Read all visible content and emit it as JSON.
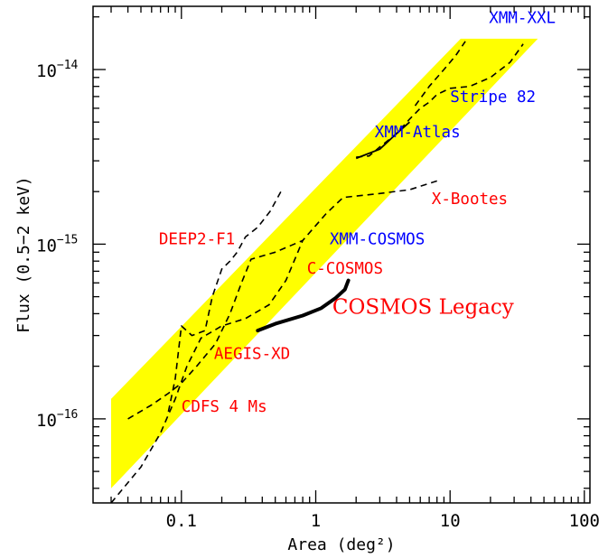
{
  "chart_data": {
    "type": "line",
    "title": "",
    "xlabel": "Area (deg²)",
    "ylabel": "Flux (0.5−2 keV)",
    "xscale": "log",
    "yscale": "log",
    "xlim": [
      0.022,
      110
    ],
    "ylim": [
      3.3e-17,
      2.3e-14
    ],
    "x_tick_labels": [
      "0.1",
      "1",
      "10",
      "100"
    ],
    "y_tick_labels": [
      {
        "mantissa": "10",
        "exponent": "−14"
      },
      {
        "mantissa": "10",
        "exponent": "−15"
      },
      {
        "mantissa": "10",
        "exponent": "−16"
      }
    ],
    "colors": {
      "band": "#ffff00",
      "red_label": "#ff0000",
      "blue_label": "#0000ff",
      "curve": "#000000"
    },
    "band": {
      "upper": [
        [
          0.03,
          1.3e-16
        ],
        [
          12,
          1.5e-14
        ]
      ],
      "lower": [
        [
          0.03,
          4e-17
        ],
        [
          45,
          1.5e-14
        ]
      ]
    },
    "series": [
      {
        "label_ref": "CDFS 4 Ms",
        "style": "dashed",
        "points": [
          [
            0.03,
            3.3e-17
          ],
          [
            0.05,
            5.3e-17
          ],
          [
            0.07,
            8.3e-17
          ],
          [
            0.09,
            1.3e-16
          ],
          [
            0.11,
            2e-16
          ],
          [
            0.14,
            2.9e-16
          ],
          [
            0.2,
            3.4e-16
          ],
          [
            0.3,
            3.75e-16
          ],
          [
            0.45,
            4.5e-16
          ],
          [
            0.6,
            6.2e-16
          ],
          [
            0.7,
            8.2e-16
          ],
          [
            0.8,
            1.05e-15
          ]
        ]
      },
      {
        "label_ref": "AEGIS-XD",
        "style": "dashed",
        "points": [
          [
            0.04,
            1e-16
          ],
          [
            0.06,
            1.2e-16
          ],
          [
            0.08,
            1.4e-16
          ],
          [
            0.1,
            1.6e-16
          ],
          [
            0.13,
            2e-16
          ],
          [
            0.18,
            2.7e-16
          ],
          [
            0.23,
            4e-16
          ],
          [
            0.28,
            6e-16
          ],
          [
            0.33,
            8.2e-16
          ],
          [
            0.5,
            9e-16
          ],
          [
            0.8,
            1.05e-15
          ],
          [
            1.2,
            1.5e-15
          ],
          [
            1.6,
            1.85e-15
          ],
          [
            3,
            1.95e-15
          ],
          [
            5,
            2.05e-15
          ],
          [
            8,
            2.3e-15
          ]
        ]
      },
      {
        "label_ref": "DEEP2-F1",
        "style": "dashed",
        "points": [
          [
            0.08,
            1.1e-16
          ],
          [
            0.09,
            1.7e-16
          ],
          [
            0.1,
            3.4e-16
          ],
          [
            0.12,
            3e-16
          ],
          [
            0.15,
            3.2e-16
          ],
          [
            0.17,
            5e-16
          ],
          [
            0.2,
            7.2e-16
          ],
          [
            0.23,
            8e-16
          ],
          [
            0.26,
            9e-16
          ],
          [
            0.3,
            1.1e-15
          ],
          [
            0.37,
            1.25e-15
          ],
          [
            0.46,
            1.55e-15
          ],
          [
            0.55,
            2e-15
          ]
        ]
      },
      {
        "label_ref": "XMM-XXL",
        "style": "dashed",
        "points": [
          [
            2,
            3.15e-15
          ],
          [
            2.5,
            3.2e-15
          ],
          [
            3,
            3.6e-15
          ],
          [
            4,
            4.3e-15
          ],
          [
            5,
            5.2e-15
          ],
          [
            6,
            6e-15
          ],
          [
            7,
            6.5e-15
          ],
          [
            8,
            7.2e-15
          ],
          [
            10,
            7.8e-15
          ],
          [
            14,
            8e-15
          ],
          [
            20,
            9e-15
          ],
          [
            28,
            1.1e-14
          ],
          [
            35,
            1.4e-14
          ]
        ]
      },
      {
        "label_ref": "XMM-Atlas",
        "style": "dashed",
        "points": [
          [
            5.5,
            6.2e-15
          ],
          [
            7,
            8e-15
          ],
          [
            9,
            1e-14
          ],
          [
            11,
            1.2e-14
          ],
          [
            13,
            1.45e-14
          ]
        ]
      },
      {
        "label_ref": "Stripe 82",
        "style": "solid-thin",
        "points": [
          [
            2,
            3.1e-15
          ],
          [
            3,
            3.5e-15
          ],
          [
            4,
            4.3e-15
          ],
          [
            5,
            5e-15
          ]
        ]
      },
      {
        "label_ref": "COSMOS Legacy",
        "style": "solid-thick",
        "points": [
          [
            0.37,
            3.2e-16
          ],
          [
            0.5,
            3.5e-16
          ],
          [
            0.8,
            3.9e-16
          ],
          [
            1.1,
            4.3e-16
          ],
          [
            1.4,
            4.9e-16
          ],
          [
            1.65,
            5.5e-16
          ],
          [
            1.75,
            6.2e-16
          ]
        ]
      }
    ],
    "annotations": [
      {
        "text": "XMM-XXL",
        "x": 19.5,
        "y": 1.85e-14,
        "color": "blue",
        "kind": "survey"
      },
      {
        "text": "Stripe 82",
        "x": 10,
        "y": 6.5e-15,
        "color": "blue",
        "kind": "survey"
      },
      {
        "text": "XMM-Atlas",
        "x": 2.75,
        "y": 4.1e-15,
        "color": "blue",
        "kind": "survey"
      },
      {
        "text": "X-Bootes",
        "x": 7.3,
        "y": 1.7e-15,
        "color": "red",
        "kind": "survey"
      },
      {
        "text": "XMM-COSMOS",
        "x": 1.27,
        "y": 1e-15,
        "color": "blue",
        "kind": "survey"
      },
      {
        "text": "DEEP2-F1",
        "x": 0.068,
        "y": 1e-15,
        "color": "red",
        "kind": "survey"
      },
      {
        "text": "C-COSMOS",
        "x": 0.86,
        "y": 6.8e-16,
        "color": "red",
        "kind": "survey"
      },
      {
        "text": "COSMOS Legacy",
        "x": 1.33,
        "y": 4e-16,
        "color": "red",
        "kind": "legacy"
      },
      {
        "text": "AEGIS-XD",
        "x": 0.175,
        "y": 2.2e-16,
        "color": "red",
        "kind": "survey"
      },
      {
        "text": "CDFS 4 Ms",
        "x": 0.1,
        "y": 1.1e-16,
        "color": "red",
        "kind": "survey"
      }
    ]
  }
}
